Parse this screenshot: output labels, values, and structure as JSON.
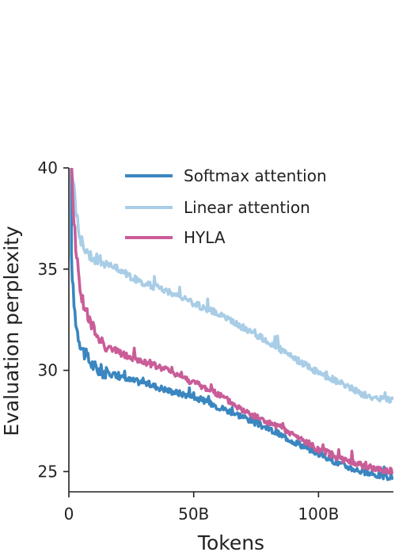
{
  "chart_data": {
    "type": "line",
    "title": "",
    "xlabel": "Tokens",
    "ylabel": "Evaluation perplexity",
    "xlim": [
      0,
      130
    ],
    "ylim": [
      24,
      40
    ],
    "x_unit": "B tokens",
    "x_ticks": [
      {
        "value": 0,
        "label": "0"
      },
      {
        "value": 50,
        "label": "50B"
      },
      {
        "value": 100,
        "label": "100B"
      }
    ],
    "y_ticks": [
      {
        "value": 25,
        "label": "25"
      },
      {
        "value": 30,
        "label": "30"
      },
      {
        "value": 35,
        "label": "35"
      },
      {
        "value": 40,
        "label": "40"
      }
    ],
    "grid": false,
    "legend": {
      "position": "top-right"
    },
    "series": [
      {
        "name": "Softmax attention",
        "color": "#3a86c0",
        "x": [
          1,
          2,
          3,
          4,
          5,
          6,
          8,
          10,
          12,
          15,
          20,
          25,
          30,
          40,
          50,
          60,
          70,
          80,
          90,
          100,
          110,
          120,
          130
        ],
        "y": [
          35.5,
          33.3,
          32.2,
          31.6,
          31.2,
          30.9,
          30.5,
          30.2,
          30.0,
          29.9,
          29.7,
          29.5,
          29.4,
          29.0,
          28.7,
          28.2,
          27.7,
          27.1,
          26.5,
          25.9,
          25.3,
          24.9,
          24.7
        ]
      },
      {
        "name": "Linear attention",
        "color": "#a9cde6",
        "x": [
          1,
          2,
          3,
          4,
          5,
          6,
          8,
          10,
          12,
          15,
          20,
          25,
          30,
          40,
          50,
          60,
          70,
          80,
          90,
          100,
          110,
          120,
          130
        ],
        "y": [
          40.0,
          39.0,
          37.8,
          37.0,
          36.4,
          36.1,
          35.8,
          35.6,
          35.4,
          35.3,
          35.0,
          34.6,
          34.3,
          33.9,
          33.3,
          32.8,
          32.1,
          31.4,
          30.6,
          29.9,
          29.3,
          28.7,
          28.5
        ]
      },
      {
        "name": "HYLA",
        "color": "#c95d98",
        "x": [
          1,
          2,
          3,
          4,
          5,
          6,
          8,
          10,
          12,
          15,
          20,
          25,
          30,
          40,
          50,
          60,
          70,
          80,
          90,
          100,
          110,
          120,
          130
        ],
        "y": [
          40.0,
          37.5,
          35.8,
          34.6,
          33.8,
          33.2,
          32.5,
          32.0,
          31.6,
          31.2,
          30.9,
          30.6,
          30.4,
          30.0,
          29.4,
          28.8,
          28.0,
          27.4,
          26.8,
          26.1,
          25.6,
          25.2,
          25.0
        ]
      }
    ]
  }
}
